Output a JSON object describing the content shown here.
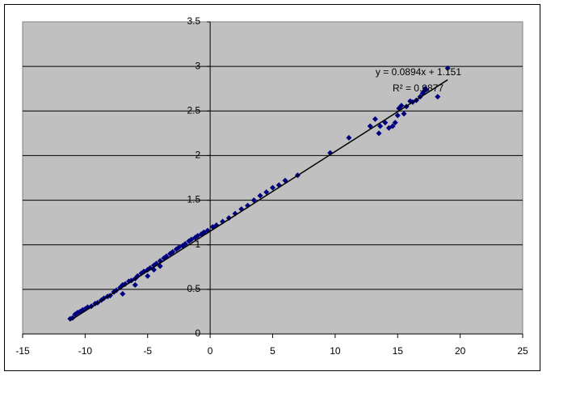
{
  "chart_data": {
    "type": "scatter",
    "annotations": [
      "y = 0.0894x + 1.151",
      "R² = 0.9877"
    ],
    "series": [
      {
        "color": "#000080",
        "x": [
          -11.2,
          -11,
          -10.8,
          -10.6,
          -10.4,
          -10.2,
          -10,
          -9.8,
          -9.5,
          -9.2,
          -9,
          -8.7,
          -8.5,
          -8.2,
          -8,
          -7.7,
          -7.5,
          -7.2,
          -7,
          -6.8,
          -6.5,
          -6.3,
          -6,
          -5.8,
          -5.5,
          -5.3,
          -5,
          -4.8,
          -4.5,
          -4.3,
          -4,
          -3.7,
          -3.5,
          -3.2,
          -3,
          -2.7,
          -2.5,
          -2.2,
          -2,
          -1.7,
          -1.5,
          -1.2,
          -1,
          -0.7,
          -0.5,
          -0.2,
          0.2,
          0.5,
          1,
          1.5,
          2,
          2.5,
          3,
          3.5,
          4,
          4.5,
          5,
          5.5,
          6,
          7,
          9.6,
          11.1,
          12.8,
          13.2,
          13.5,
          13.6,
          14,
          14.3,
          14.6,
          14.8,
          15,
          15.1,
          15.3,
          15.5,
          15.7,
          16,
          16.2,
          16.5,
          16.8,
          17,
          17.1,
          17.2,
          17.3,
          18.2,
          19,
          -7,
          -6,
          -5,
          -4.5,
          -4
        ],
        "values": [
          0.17,
          0.18,
          0.22,
          0.24,
          0.25,
          0.27,
          0.28,
          0.3,
          0.31,
          0.34,
          0.35,
          0.38,
          0.4,
          0.42,
          0.43,
          0.47,
          0.49,
          0.52,
          0.55,
          0.56,
          0.59,
          0.6,
          0.62,
          0.65,
          0.68,
          0.7,
          0.72,
          0.74,
          0.77,
          0.79,
          0.82,
          0.85,
          0.87,
          0.9,
          0.92,
          0.95,
          0.97,
          0.99,
          1.01,
          1.04,
          1.06,
          1.08,
          1.1,
          1.12,
          1.14,
          1.16,
          1.2,
          1.22,
          1.26,
          1.3,
          1.35,
          1.4,
          1.44,
          1.5,
          1.55,
          1.59,
          1.64,
          1.67,
          1.72,
          1.78,
          2.03,
          2.2,
          2.33,
          2.41,
          2.25,
          2.33,
          2.37,
          2.31,
          2.33,
          2.37,
          2.45,
          2.53,
          2.56,
          2.47,
          2.55,
          2.61,
          2.6,
          2.62,
          2.66,
          2.7,
          2.72,
          2.75,
          2.74,
          2.66,
          2.98,
          0.45,
          0.55,
          0.65,
          0.72,
          0.76
        ]
      }
    ],
    "trendline": {
      "x": [
        -11.2,
        19
      ],
      "values": [
        0.15,
        2.85
      ]
    },
    "xlim": [
      -15,
      25
    ],
    "xticks": [
      -15,
      -10,
      -5,
      0,
      5,
      10,
      15,
      20,
      25
    ],
    "ylim": [
      0,
      3.5
    ],
    "yticks": [
      0,
      0.5,
      1,
      1.5,
      2,
      2.5,
      3,
      3.5
    ],
    "grid": true
  }
}
